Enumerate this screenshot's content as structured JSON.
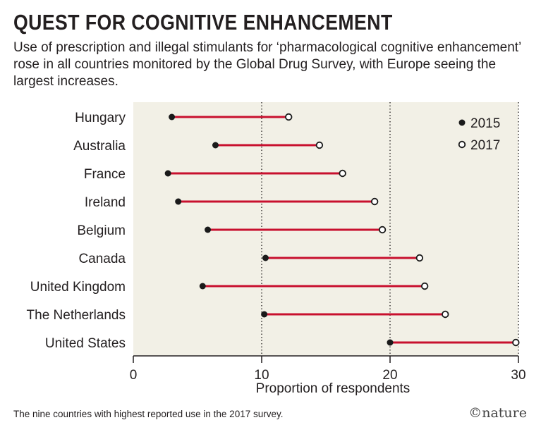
{
  "title": "QUEST FOR COGNITIVE ENHANCEMENT",
  "subtitle": "Use of prescription and illegal stimulants for ‘pharmacological cognitive enhancement’ rose in all countries monitored by the Global Drug Survey, with Europe seeing the largest increases.",
  "footnote": "The nine countries with highest reported use in the 2017 survey.",
  "credit": "©nature",
  "colors": {
    "background": "#f2f0e6",
    "line": "#c8102e",
    "marker": "#1a1a1a"
  },
  "chart_data": {
    "type": "dumbbell",
    "xlabel": "Proportion of respondents",
    "xlim": [
      0,
      30
    ],
    "xticks": [
      0,
      10,
      20,
      30
    ],
    "grid": "vertical dotted at 10, 20, 30",
    "legend_position": "top-right",
    "series": [
      {
        "name": "2015",
        "marker": "filled-circle"
      },
      {
        "name": "2017",
        "marker": "open-circle"
      }
    ],
    "categories": [
      "Hungary",
      "Australia",
      "France",
      "Ireland",
      "Belgium",
      "Canada",
      "United Kingdom",
      "The Netherlands",
      "United States"
    ],
    "values_2015": [
      3.0,
      6.4,
      2.7,
      3.5,
      5.8,
      10.3,
      5.4,
      10.2,
      20.0
    ],
    "values_2017": [
      12.1,
      14.5,
      16.3,
      18.8,
      19.4,
      22.3,
      22.7,
      24.3,
      29.8
    ]
  }
}
